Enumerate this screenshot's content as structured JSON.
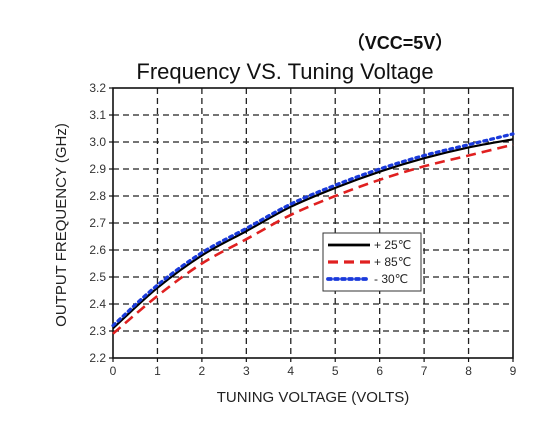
{
  "chart_data": {
    "type": "line",
    "title": "Frequency VS. Tuning Voltage",
    "subtitle": "（VCC=5V）",
    "xlabel": "TUNING VOLTAGE (VOLTS)",
    "ylabel": "OUTPUT FREQUENCY (GHz)",
    "xlim": [
      0,
      9
    ],
    "ylim": [
      2.2,
      3.2
    ],
    "x_ticks": [
      "0",
      "1",
      "2",
      "3",
      "4",
      "5",
      "6",
      "7",
      "8",
      "9"
    ],
    "y_ticks": [
      "2.2",
      "2.3",
      "2.4",
      "2.5",
      "2.6",
      "2.7",
      "2.8",
      "2.9",
      "3.0",
      "3.1",
      "3.2"
    ],
    "grid": true,
    "legend_position": "center-right",
    "x": [
      0,
      1,
      2,
      3,
      4,
      5,
      6,
      7,
      8,
      9
    ],
    "series": [
      {
        "name": "+ 25℃",
        "color": "#000000",
        "style": "solid",
        "values": [
          2.31,
          2.46,
          2.58,
          2.67,
          2.76,
          2.83,
          2.89,
          2.94,
          2.98,
          3.01
        ]
      },
      {
        "name": "+ 85℃",
        "color": "#e02020",
        "style": "dashed",
        "values": [
          2.29,
          2.43,
          2.55,
          2.64,
          2.73,
          2.8,
          2.86,
          2.91,
          2.95,
          2.99
        ]
      },
      {
        "name": "- 30℃",
        "color": "#1a3adb",
        "style": "dotted",
        "values": [
          2.32,
          2.47,
          2.59,
          2.68,
          2.77,
          2.84,
          2.9,
          2.95,
          2.99,
          3.03
        ]
      }
    ]
  }
}
